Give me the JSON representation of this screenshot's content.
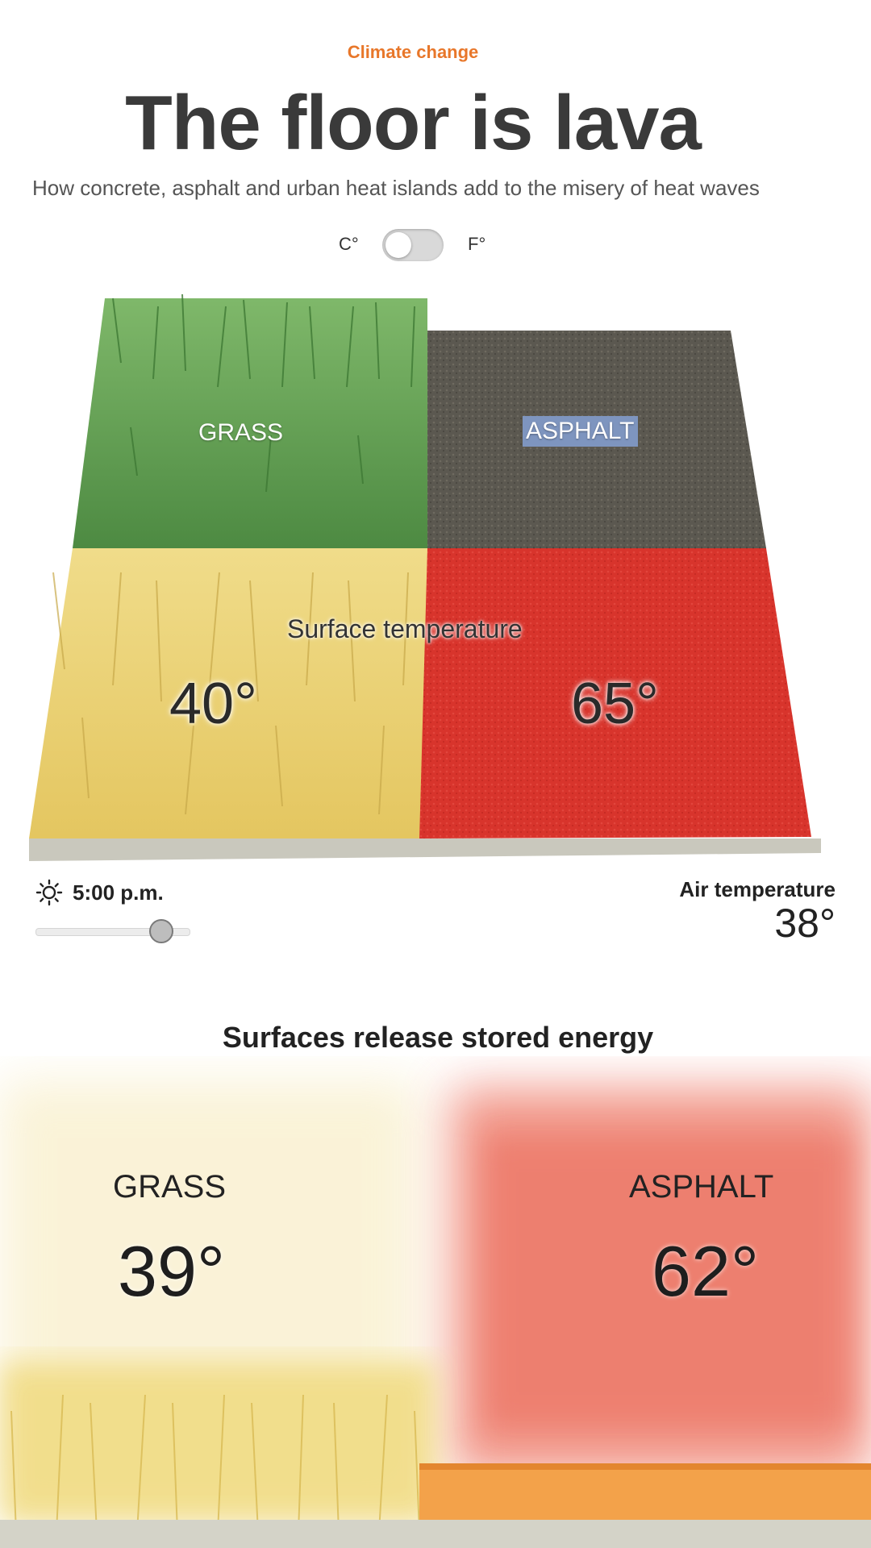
{
  "header": {
    "kicker": "Climate change",
    "title": "The floor is lava",
    "subtitle": "How concrete, asphalt and urban heat islands add to the misery of heat waves"
  },
  "unit_toggle": {
    "celsius_label": "C°",
    "fahrenheit_label": "F°",
    "selected": "C°"
  },
  "surface_scene": {
    "grass_label": "GRASS",
    "asphalt_label": "ASPHALT",
    "caption": "Surface temperature",
    "grass_temp": "40°",
    "asphalt_temp": "65°"
  },
  "time_control": {
    "icon": "sun-icon",
    "time": "5:00 p.m.",
    "slider_position": 0.85
  },
  "air": {
    "label": "Air temperature",
    "value": "38°"
  },
  "energy_section": {
    "title": "Surfaces release stored energy",
    "grass_label": "GRASS",
    "grass_temp": "39°",
    "asphalt_label": "ASPHALT",
    "asphalt_temp": "62°"
  },
  "colors": {
    "accent": "#e8772a",
    "grass_green": "#5f9a4f",
    "grass_dry": "#e9d27a",
    "asphalt": "#5b5850",
    "asphalt_hot": "#d8342c",
    "heat_haze": "#f08a7a"
  }
}
